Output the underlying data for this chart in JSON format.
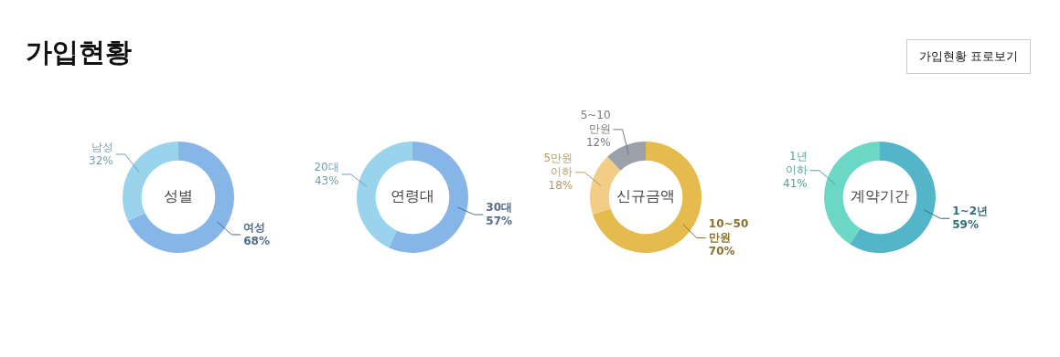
{
  "chart_data": [
    {
      "type": "other",
      "title": "가입현황",
      "annotations": [
        "가입현황 표로보기"
      ]
    },
    {
      "type": "donut",
      "title": "성별",
      "categories": [
        "여성",
        "남성"
      ],
      "values": [
        68,
        32
      ],
      "colors": [
        "#86b5e8",
        "#9ad3ec"
      ],
      "value_labels": [
        "68%",
        "32%"
      ]
    },
    {
      "type": "donut",
      "title": "연령대",
      "categories": [
        "30대",
        "20대"
      ],
      "values": [
        57,
        43
      ],
      "colors": [
        "#86b5e8",
        "#9ad3ec"
      ],
      "value_labels": [
        "57%",
        "43%"
      ]
    },
    {
      "type": "donut",
      "title": "신규금액",
      "categories": [
        "10~50 만원",
        "5만원 이하",
        "5~10 만원"
      ],
      "values": [
        70,
        18,
        12
      ],
      "colors": [
        "#e5bb4e",
        "#f2cd85",
        "#9aa1aa"
      ],
      "value_labels": [
        "70%",
        "18%",
        "12%"
      ]
    },
    {
      "type": "donut",
      "title": "계약기간",
      "categories": [
        "1~2년",
        "1년 이하"
      ],
      "values": [
        59,
        41
      ],
      "colors": [
        "#55b5c8",
        "#6bd8c5"
      ],
      "value_labels": [
        "59%",
        "41%"
      ]
    }
  ]
}
